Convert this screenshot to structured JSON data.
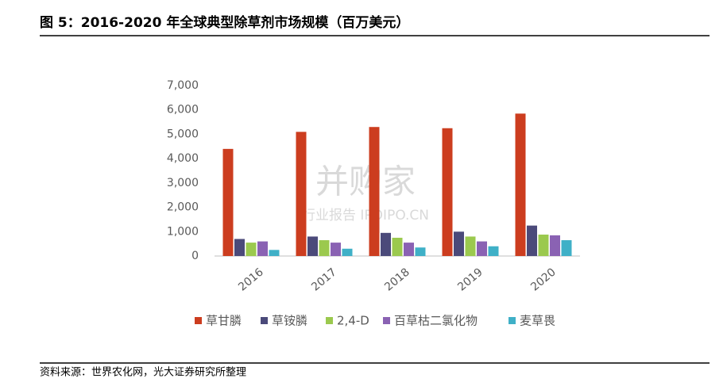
{
  "chart_data": {
    "type": "bar",
    "title": "图 5：2016-2020 年全球典型除草剂市场规模（百万美元）",
    "source": "资料来源：世界农化网，光大证券研究所整理",
    "watermark": [
      "并购家",
      "行业报告 IPOIPO.CN"
    ],
    "categories": [
      "2016",
      "2017",
      "2018",
      "2019",
      "2020"
    ],
    "series": [
      {
        "name": "草甘膦",
        "color": "#cc3d1f",
        "values": [
          4400,
          5100,
          5300,
          5250,
          5850
        ]
      },
      {
        "name": "草铵膦",
        "color": "#4b4a7a",
        "values": [
          700,
          800,
          950,
          1000,
          1250
        ]
      },
      {
        "name": "2,4-D",
        "color": "#9bc94e",
        "values": [
          550,
          650,
          750,
          800,
          880
        ]
      },
      {
        "name": "百草枯二氯化物",
        "color": "#8a62b3",
        "values": [
          600,
          550,
          550,
          600,
          850
        ]
      },
      {
        "name": "麦草畏",
        "color": "#3fb0c7",
        "values": [
          250,
          300,
          350,
          400,
          650
        ]
      }
    ],
    "ylim": [
      0,
      7000
    ],
    "yticks": [
      0,
      {
        "value": 1000,
        "label": "1,000"
      },
      {
        "value": 2000,
        "label": "2,000"
      },
      {
        "value": 3000,
        "label": "3,000"
      },
      {
        "value": 4000,
        "label": "4,000"
      },
      {
        "value": 5000,
        "label": "5,000"
      },
      {
        "value": 6000,
        "label": "6,000"
      },
      {
        "value": 7000,
        "label": "7,000"
      }
    ],
    "grid": false,
    "legend": "bottom"
  }
}
